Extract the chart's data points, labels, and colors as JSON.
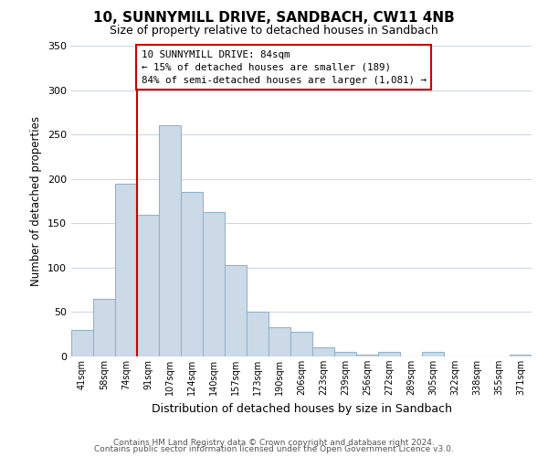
{
  "title": "10, SUNNYMILL DRIVE, SANDBACH, CW11 4NB",
  "subtitle": "Size of property relative to detached houses in Sandbach",
  "xlabel": "Distribution of detached houses by size in Sandbach",
  "ylabel": "Number of detached properties",
  "bar_labels": [
    "41sqm",
    "58sqm",
    "74sqm",
    "91sqm",
    "107sqm",
    "124sqm",
    "140sqm",
    "157sqm",
    "173sqm",
    "190sqm",
    "206sqm",
    "223sqm",
    "239sqm",
    "256sqm",
    "272sqm",
    "289sqm",
    "305sqm",
    "322sqm",
    "338sqm",
    "355sqm",
    "371sqm"
  ],
  "bar_values": [
    30,
    65,
    195,
    160,
    260,
    185,
    163,
    103,
    50,
    33,
    28,
    10,
    5,
    2,
    5,
    0,
    5,
    0,
    0,
    0,
    2
  ],
  "bar_color": "#ccdae8",
  "bar_edge_color": "#91b4cc",
  "ylim": [
    0,
    350
  ],
  "yticks": [
    0,
    50,
    100,
    150,
    200,
    250,
    300,
    350
  ],
  "property_line_label": "10 SUNNYMILL DRIVE: 84sqm",
  "annotation_smaller": "← 15% of detached houses are smaller (189)",
  "annotation_larger": "84% of semi-detached houses are larger (1,081) →",
  "line_color": "#cc0000",
  "annotation_box_color": "#ffffff",
  "annotation_box_edge": "#cc0000",
  "footer1": "Contains HM Land Registry data © Crown copyright and database right 2024.",
  "footer2": "Contains public sector information licensed under the Open Government Licence v3.0.",
  "background_color": "#ffffff",
  "grid_color": "#ccd8e4"
}
